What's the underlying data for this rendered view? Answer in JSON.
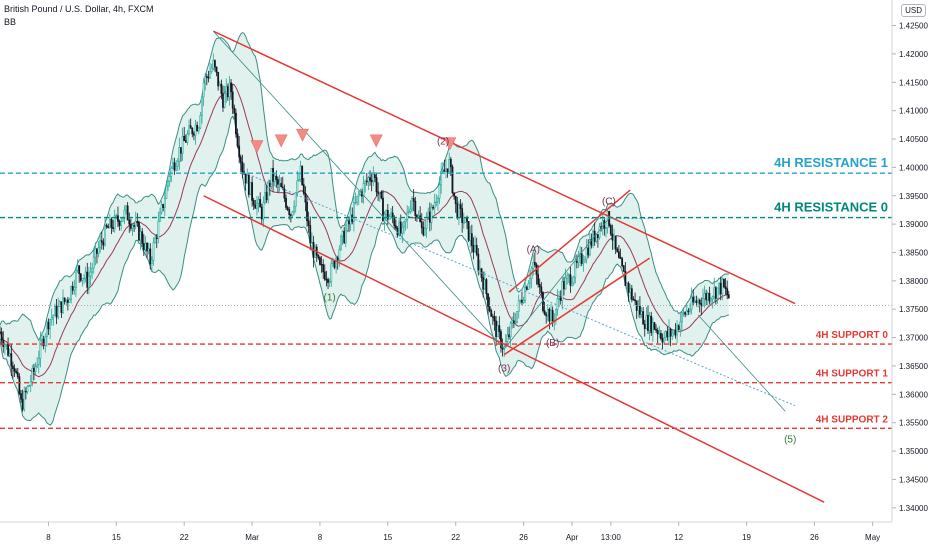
{
  "header": {
    "symbol": "British Pound / U.S. Dollar, 4h, FXCM",
    "indicator": "BB",
    "currency": "USD"
  },
  "colors": {
    "candle_up": "#26a69a",
    "candle_down": "#131722",
    "channel": "#e53935",
    "resistance1": "#26a3c7",
    "resistance0": "#00897b",
    "support": "#e53935",
    "bb_fill": "#c8e6df",
    "bb_line": "#3a8f84",
    "basis": "#9c3b5a",
    "marker": "#f28b82",
    "wave_label": "#7b2d52",
    "wave_label_alt": "#2e7d32"
  },
  "chart_data": {
    "type": "candlestick",
    "title": "British Pound / U.S. Dollar, 4h, FXCM",
    "indicator": "BB",
    "y_unit": "USD",
    "ylim": [
      1.3375,
      1.4295
    ],
    "y_ticks": [
      "1.42500",
      "1.42000",
      "1.41500",
      "1.41000",
      "1.40500",
      "1.40000",
      "1.39500",
      "1.39000",
      "1.38500",
      "1.38000",
      "1.37500",
      "1.37000",
      "1.36500",
      "1.36000",
      "1.35500",
      "1.35000",
      "1.34500",
      "1.34000"
    ],
    "x_ticks": [
      {
        "label": "8",
        "day": 8
      },
      {
        "label": "15",
        "day": 15
      },
      {
        "label": "22",
        "day": 22
      },
      {
        "label": "Mar",
        "day": 29
      },
      {
        "label": "8",
        "day": 36
      },
      {
        "label": "15",
        "day": 43
      },
      {
        "label": "22",
        "day": 50
      },
      {
        "label": "26",
        "day": 57
      },
      {
        "label": "Apr",
        "day": 62
      },
      {
        "label": "13:00",
        "day": 66
      },
      {
        "label": "12",
        "day": 73
      },
      {
        "label": "19",
        "day": 80
      },
      {
        "label": "26",
        "day": 87
      },
      {
        "label": "May",
        "day": 93
      }
    ],
    "x_range_days": [
      3,
      95
    ],
    "price_path": [
      [
        3.0,
        1.371
      ],
      [
        4.5,
        1.365
      ],
      [
        5.2,
        1.358
      ],
      [
        6.5,
        1.364
      ],
      [
        8,
        1.373
      ],
      [
        10,
        1.377
      ],
      [
        11,
        1.382
      ],
      [
        12,
        1.38
      ],
      [
        13,
        1.385
      ],
      [
        14,
        1.389
      ],
      [
        16,
        1.392
      ],
      [
        17.5,
        1.388
      ],
      [
        18.5,
        1.3835
      ],
      [
        19.5,
        1.391
      ],
      [
        20.5,
        1.399
      ],
      [
        21.5,
        1.403
      ],
      [
        22.5,
        1.406
      ],
      [
        23.5,
        1.408
      ],
      [
        24,
        1.415
      ],
      [
        25,
        1.418
      ],
      [
        26,
        1.412
      ],
      [
        26.8,
        1.414
      ],
      [
        27.5,
        1.405
      ],
      [
        28,
        1.4
      ],
      [
        29,
        1.395
      ],
      [
        30,
        1.392
      ],
      [
        31,
        1.3985
      ],
      [
        32,
        1.396
      ],
      [
        33,
        1.392
      ],
      [
        34,
        1.399
      ],
      [
        35,
        1.387
      ],
      [
        36,
        1.382
      ],
      [
        37,
        1.381
      ],
      [
        38,
        1.386
      ],
      [
        39,
        1.39
      ],
      [
        40,
        1.395
      ],
      [
        41,
        1.398
      ],
      [
        41.5,
        1.399
      ],
      [
        42.5,
        1.392
      ],
      [
        43.5,
        1.391
      ],
      [
        44.5,
        1.388
      ],
      [
        45.5,
        1.395
      ],
      [
        46.5,
        1.389
      ],
      [
        47.5,
        1.392
      ],
      [
        48.5,
        1.398
      ],
      [
        49.3,
        1.401
      ],
      [
        50,
        1.393
      ],
      [
        51,
        1.39
      ],
      [
        52,
        1.385
      ],
      [
        53,
        1.379
      ],
      [
        54,
        1.372
      ],
      [
        55,
        1.368
      ],
      [
        56,
        1.373
      ],
      [
        57,
        1.378
      ],
      [
        58,
        1.383
      ],
      [
        59,
        1.376
      ],
      [
        60,
        1.373
      ],
      [
        61,
        1.379
      ],
      [
        62,
        1.381
      ],
      [
        63,
        1.384
      ],
      [
        64,
        1.387
      ],
      [
        65,
        1.39
      ],
      [
        65.8,
        1.391
      ],
      [
        66.5,
        1.385
      ],
      [
        67.5,
        1.38
      ],
      [
        68.5,
        1.376
      ],
      [
        69.5,
        1.373
      ],
      [
        70.5,
        1.372
      ],
      [
        71.5,
        1.37
      ],
      [
        72.5,
        1.371
      ],
      [
        73.5,
        1.374
      ],
      [
        74.5,
        1.376
      ],
      [
        75.5,
        1.377
      ],
      [
        76.5,
        1.378
      ],
      [
        77.5,
        1.379
      ],
      [
        78.2,
        1.377
      ]
    ],
    "current_price": 1.37564,
    "levels": [
      {
        "name": "4H RESISTANCE 1",
        "label": "4H RESISTANCE 1",
        "price_label": "1.39898",
        "price": 1.39898,
        "color": "#26a3c7"
      },
      {
        "name": "4H RESISTANCE 0",
        "label": "4H RESISTANCE 0",
        "price_label": "1.39115",
        "price": 1.39115,
        "color": "#00897b"
      },
      {
        "name": "4H SUPPORT 0",
        "label": "4H SUPPORT 0",
        "price_label": "1.36886",
        "price": 1.36886,
        "color": "#e53935"
      },
      {
        "name": "4H SUPPORT 1",
        "label": "4H SUPPORT 1",
        "price_label": "1.36206",
        "price": 1.36206,
        "color": "#e53935"
      },
      {
        "name": "4H SUPPORT 2",
        "label": "4H SUPPORT 2",
        "price_label": "1.35401",
        "price": 1.35401,
        "color": "#e53935"
      }
    ],
    "current_price_label": "1.37564",
    "channel_lines": [
      {
        "from": [
          25.0,
          1.424
        ],
        "to": [
          85.0,
          1.376
        ]
      },
      {
        "from": [
          24.0,
          1.395
        ],
        "to": [
          88.0,
          1.341
        ]
      },
      {
        "from": [
          55.5,
          1.378
        ],
        "to": [
          68.0,
          1.396
        ]
      },
      {
        "from": [
          55.0,
          1.367
        ],
        "to": [
          70.0,
          1.384
        ]
      }
    ],
    "thin_lines": [
      {
        "from": [
          25.0,
          1.424
        ],
        "to": [
          55.0,
          1.368
        ],
        "color": "#3a8f84"
      },
      {
        "from": [
          75.0,
          1.374
        ],
        "to": [
          84.0,
          1.357
        ],
        "color": "#3a8f84"
      },
      {
        "from": [
          55.0,
          1.368
        ],
        "to": [
          65.8,
          1.391
        ],
        "color": "#3a8f84"
      }
    ],
    "dotted_lines": [
      {
        "from": [
          29.0,
          1.3985
        ],
        "to": [
          85.0,
          1.358
        ],
        "color": "#5aa7cf"
      },
      {
        "from": [
          64.0,
          1.391
        ],
        "to": [
          71.0,
          1.391
        ],
        "color": "#5aa7cf"
      }
    ],
    "annotations": [
      {
        "text": "(1)",
        "day": 37.0,
        "price": 1.3765,
        "color": "#2e7d32"
      },
      {
        "text": "(2)",
        "day": 48.7,
        "price": 1.404,
        "color": "#7b2d52"
      },
      {
        "text": "(3)",
        "day": 55.0,
        "price": 1.364,
        "color": "#7b2d52"
      },
      {
        "text": "(A)",
        "day": 58.0,
        "price": 1.385,
        "color": "#7b2d52"
      },
      {
        "text": "(B)",
        "day": 60.0,
        "price": 1.3685,
        "color": "#7b2d52"
      },
      {
        "text": "(C)",
        "day": 65.8,
        "price": 1.3935,
        "color": "#7b2d52"
      },
      {
        "text": "(5)",
        "day": 84.5,
        "price": 1.3515,
        "color": "#2e7d32"
      }
    ],
    "markers": [
      {
        "name": "down-arrow-marker",
        "day": 29.5,
        "price": 1.4035
      },
      {
        "name": "down-arrow-marker",
        "day": 32.0,
        "price": 1.4045
      },
      {
        "name": "down-arrow-marker",
        "day": 34.2,
        "price": 1.4055
      },
      {
        "name": "down-arrow-marker",
        "day": 41.8,
        "price": 1.4045
      },
      {
        "name": "down-arrow-marker",
        "day": 49.4,
        "price": 1.404
      }
    ]
  }
}
